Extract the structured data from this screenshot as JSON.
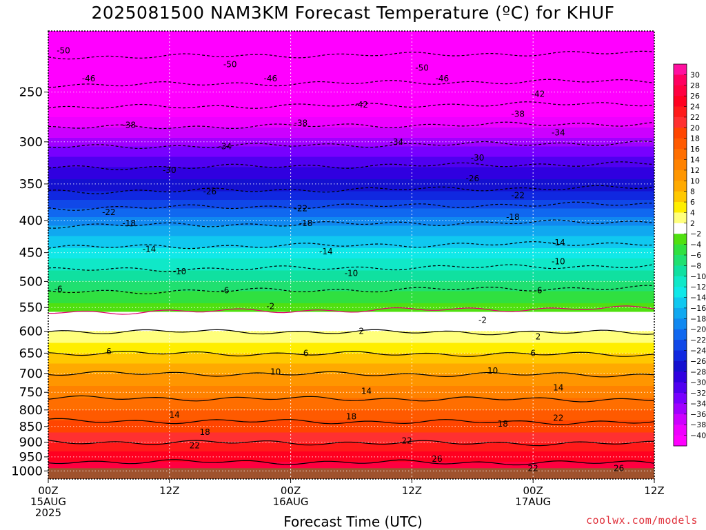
{
  "chart_data": {
    "type": "heatmap",
    "title": "2025081500 NAM3KM Forecast Temperature (ºC) for KHUF",
    "xlabel": "Forecast Time (UTC)",
    "ylabel": "",
    "y_scale": "log-pressure",
    "y_inverted": true,
    "ylim": [
      1030,
      200
    ],
    "xlim_hours": [
      0,
      60
    ],
    "y_ticks": [
      250,
      300,
      350,
      400,
      450,
      500,
      550,
      600,
      650,
      700,
      750,
      800,
      850,
      900,
      950,
      1000
    ],
    "x_ticks": [
      {
        "hour": 0,
        "lines": [
          "00Z",
          "15AUG",
          "2025"
        ]
      },
      {
        "hour": 12,
        "lines": [
          "12Z"
        ]
      },
      {
        "hour": 24,
        "lines": [
          "00Z",
          "16AUG"
        ]
      },
      {
        "hour": 36,
        "lines": [
          "12Z"
        ]
      },
      {
        "hour": 48,
        "lines": [
          "00Z",
          "17AUG"
        ]
      },
      {
        "hour": 60,
        "lines": [
          "12Z"
        ]
      }
    ],
    "grid": true,
    "ground_level_hpa": 990,
    "profile": [
      {
        "p": 200,
        "t": -53
      },
      {
        "p": 220,
        "t": -50
      },
      {
        "p": 250,
        "t": -45
      },
      {
        "p": 280,
        "t": -39
      },
      {
        "p": 300,
        "t": -35
      },
      {
        "p": 330,
        "t": -30
      },
      {
        "p": 360,
        "t": -26
      },
      {
        "p": 400,
        "t": -19
      },
      {
        "p": 450,
        "t": -13
      },
      {
        "p": 500,
        "t": -8
      },
      {
        "p": 540,
        "t": -4
      },
      {
        "p": 570,
        "t": -1
      },
      {
        "p": 600,
        "t": 2
      },
      {
        "p": 650,
        "t": 6
      },
      {
        "p": 700,
        "t": 10
      },
      {
        "p": 750,
        "t": 13
      },
      {
        "p": 800,
        "t": 16
      },
      {
        "p": 850,
        "t": 19
      },
      {
        "p": 900,
        "t": 22
      },
      {
        "p": 950,
        "t": 25
      },
      {
        "p": 1000,
        "t": 28
      },
      {
        "p": 1030,
        "t": 29
      }
    ],
    "contours": [
      {
        "level": -50,
        "labels": [
          {
            "hour": 1.5,
            "p": 215
          },
          {
            "hour": 18,
            "p": 226
          },
          {
            "hour": 37,
            "p": 229
          }
        ]
      },
      {
        "level": -46,
        "labels": [
          {
            "hour": 4,
            "p": 238
          },
          {
            "hour": 22,
            "p": 238
          },
          {
            "hour": 39,
            "p": 238
          }
        ]
      },
      {
        "level": -42,
        "labels": [
          {
            "hour": 31,
            "p": 262
          },
          {
            "hour": 48.5,
            "p": 252
          }
        ]
      },
      {
        "level": -38,
        "labels": [
          {
            "hour": 8,
            "p": 282
          },
          {
            "hour": 25,
            "p": 280
          },
          {
            "hour": 46.5,
            "p": 271
          }
        ]
      },
      {
        "level": -34,
        "labels": [
          {
            "hour": 17.5,
            "p": 305
          },
          {
            "hour": 34.5,
            "p": 300
          },
          {
            "hour": 50.5,
            "p": 290
          }
        ]
      },
      {
        "level": -30,
        "labels": [
          {
            "hour": 12,
            "p": 333
          },
          {
            "hour": 42.5,
            "p": 318
          }
        ]
      },
      {
        "level": -26,
        "labels": [
          {
            "hour": 16,
            "p": 360
          },
          {
            "hour": 42,
            "p": 343
          }
        ]
      },
      {
        "level": -22,
        "labels": [
          {
            "hour": 6,
            "p": 388
          },
          {
            "hour": 25,
            "p": 383
          },
          {
            "hour": 46.5,
            "p": 365
          }
        ]
      },
      {
        "level": -18,
        "labels": [
          {
            "hour": 8,
            "p": 404
          },
          {
            "hour": 25.5,
            "p": 404
          },
          {
            "hour": 46,
            "p": 395
          }
        ]
      },
      {
        "level": -14,
        "labels": [
          {
            "hour": 10,
            "p": 444
          },
          {
            "hour": 27.5,
            "p": 448
          },
          {
            "hour": 50.5,
            "p": 434
          }
        ]
      },
      {
        "level": -10,
        "labels": [
          {
            "hour": 13,
            "p": 482
          },
          {
            "hour": 30,
            "p": 485
          },
          {
            "hour": 50.5,
            "p": 465
          }
        ]
      },
      {
        "level": -6,
        "labels": [
          {
            "hour": 1,
            "p": 514
          },
          {
            "hour": 17.5,
            "p": 517
          },
          {
            "hour": 48.5,
            "p": 517
          }
        ]
      },
      {
        "level": -2,
        "labels": [
          {
            "hour": 22,
            "p": 548
          },
          {
            "hour": 43,
            "p": 576
          }
        ]
      },
      {
        "level": 2,
        "labels": [
          {
            "hour": 31,
            "p": 600
          },
          {
            "hour": 48.5,
            "p": 612
          }
        ]
      },
      {
        "level": 6,
        "labels": [
          {
            "hour": 6,
            "p": 646
          },
          {
            "hour": 25.5,
            "p": 650
          },
          {
            "hour": 48,
            "p": 650
          }
        ]
      },
      {
        "level": 10,
        "labels": [
          {
            "hour": 22.5,
            "p": 696
          },
          {
            "hour": 44,
            "p": 693
          }
        ]
      },
      {
        "level": 14,
        "labels": [
          {
            "hour": 31.5,
            "p": 747
          },
          {
            "hour": 12.5,
            "p": 815
          },
          {
            "hour": 50.5,
            "p": 737
          }
        ]
      },
      {
        "level": 18,
        "labels": [
          {
            "hour": 15.5,
            "p": 868
          },
          {
            "hour": 30,
            "p": 820
          },
          {
            "hour": 45,
            "p": 842
          }
        ]
      },
      {
        "level": 22,
        "labels": [
          {
            "hour": 14.5,
            "p": 912
          },
          {
            "hour": 35.5,
            "p": 895
          },
          {
            "hour": 50.5,
            "p": 824
          },
          {
            "hour": 48,
            "p": 990
          }
        ]
      },
      {
        "level": 26,
        "labels": [
          {
            "hour": 38.5,
            "p": 957
          },
          {
            "hour": 56.5,
            "p": 990
          }
        ]
      }
    ],
    "colorbar": {
      "levels": [
        30,
        28,
        26,
        24,
        22,
        20,
        18,
        16,
        14,
        12,
        10,
        8,
        6,
        4,
        2,
        -2,
        -4,
        -6,
        -8,
        -10,
        -12,
        -14,
        -16,
        -18,
        -20,
        -22,
        -24,
        -26,
        -28,
        -30,
        -32,
        -34,
        -36,
        -38,
        -40
      ],
      "labels": [
        "30",
        "28",
        "26",
        "24",
        "22",
        "20",
        "18",
        "16",
        "14",
        "12",
        "10",
        "8",
        "6",
        "4",
        "2",
        "−2",
        "−4",
        "−6",
        "−8",
        "−10",
        "−12",
        "−14",
        "−16",
        "−18",
        "−20",
        "−22",
        "−24",
        "−26",
        "−28",
        "−30",
        "−32",
        "−34",
        "−36",
        "−38",
        "−40"
      ],
      "colors": [
        "#ff10a0",
        "#ff0060",
        "#ff0040",
        "#ff0020",
        "#ff1a1a",
        "#ff3030",
        "#ff4500",
        "#ff5a00",
        "#ff6e00",
        "#ff8200",
        "#ff9600",
        "#ffaa00",
        "#ffc800",
        "#ffee00",
        "#ffff7c",
        "#ffffff",
        "#50e010",
        "#30e040",
        "#20e070",
        "#10e0a0",
        "#10e8c8",
        "#10e8e8",
        "#10c8f0",
        "#10a8f0",
        "#1088f0",
        "#1068f0",
        "#1048e8",
        "#1028e0",
        "#1410d0",
        "#3000e0",
        "#5000f0",
        "#7800ff",
        "#a000ff",
        "#cc00ff",
        "#ee00ff",
        "#ff00ff"
      ]
    }
  },
  "credit": "coolwx.com/models"
}
